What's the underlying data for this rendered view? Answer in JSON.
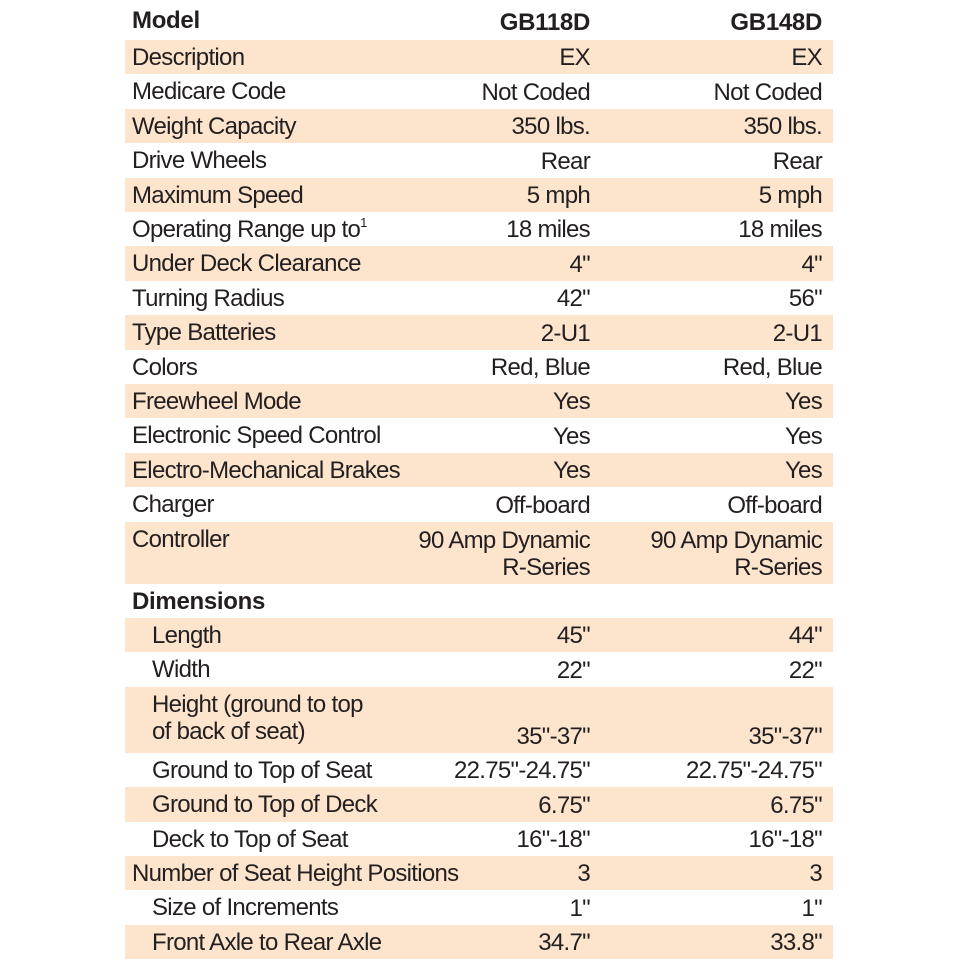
{
  "header": {
    "label": "Model",
    "columns": [
      "GB118D",
      "GB148D"
    ]
  },
  "rows": [
    {
      "label": "Description",
      "values": [
        "EX",
        "EX"
      ]
    },
    {
      "label": "Medicare Code",
      "values": [
        "Not Coded",
        "Not Coded"
      ]
    },
    {
      "label": "Weight Capacity",
      "values": [
        "350 lbs.",
        "350 lbs."
      ]
    },
    {
      "label": "Drive Wheels",
      "values": [
        "Rear",
        "Rear"
      ]
    },
    {
      "label": "Maximum Speed",
      "values": [
        "5 mph",
        "5 mph"
      ]
    },
    {
      "label": "Operating Range up to",
      "footnote": "1",
      "values": [
        "18 miles",
        "18 miles"
      ]
    },
    {
      "label": "Under Deck Clearance",
      "values": [
        "4\"",
        "4\""
      ]
    },
    {
      "label": "Turning Radius",
      "values": [
        "42\"",
        "56\""
      ]
    },
    {
      "label": "Type Batteries",
      "values": [
        "2-U1",
        "2-U1"
      ]
    },
    {
      "label": "Colors",
      "values": [
        "Red, Blue",
        "Red, Blue"
      ]
    },
    {
      "label": "Freewheel Mode",
      "values": [
        "Yes",
        "Yes"
      ]
    },
    {
      "label": "Electronic Speed Control",
      "values": [
        "Yes",
        "Yes"
      ]
    },
    {
      "label": "Electro-Mechanical Brakes",
      "values": [
        "Yes",
        "Yes"
      ]
    },
    {
      "label": "Charger",
      "values": [
        "Off-board",
        "Off-board"
      ]
    },
    {
      "label": "Controller",
      "values": [
        [
          "90 Amp Dynamic",
          "R-Series"
        ],
        [
          "90 Amp Dynamic",
          "R-Series"
        ]
      ]
    }
  ],
  "dimensions": {
    "title": "Dimensions",
    "rows": [
      {
        "label": "Length",
        "values": [
          "45\"",
          "44\""
        ]
      },
      {
        "label": "Width",
        "values": [
          "22\"",
          "22\""
        ]
      },
      {
        "label": [
          "Height (ground to top",
          "of back of seat)"
        ],
        "values": [
          "35\"-37\"",
          "35\"-37\""
        ]
      },
      {
        "label": "Ground to Top of Seat",
        "values": [
          "22.75\"-24.75\"",
          "22.75\"-24.75\""
        ]
      },
      {
        "label": "Ground to Top of Deck",
        "values": [
          "6.75\"",
          "6.75\""
        ]
      },
      {
        "label": "Deck to Top of Seat",
        "values": [
          "16\"-18\"",
          "16\"-18\""
        ]
      },
      {
        "label": "Number of Seat Height Positions",
        "values": [
          "3",
          "3"
        ]
      },
      {
        "label": "Size of Increments",
        "values": [
          "1\"",
          "1\""
        ]
      },
      {
        "label": "Front Axle to Rear Axle",
        "values": [
          "34.7\"",
          "33.8\""
        ]
      }
    ]
  }
}
